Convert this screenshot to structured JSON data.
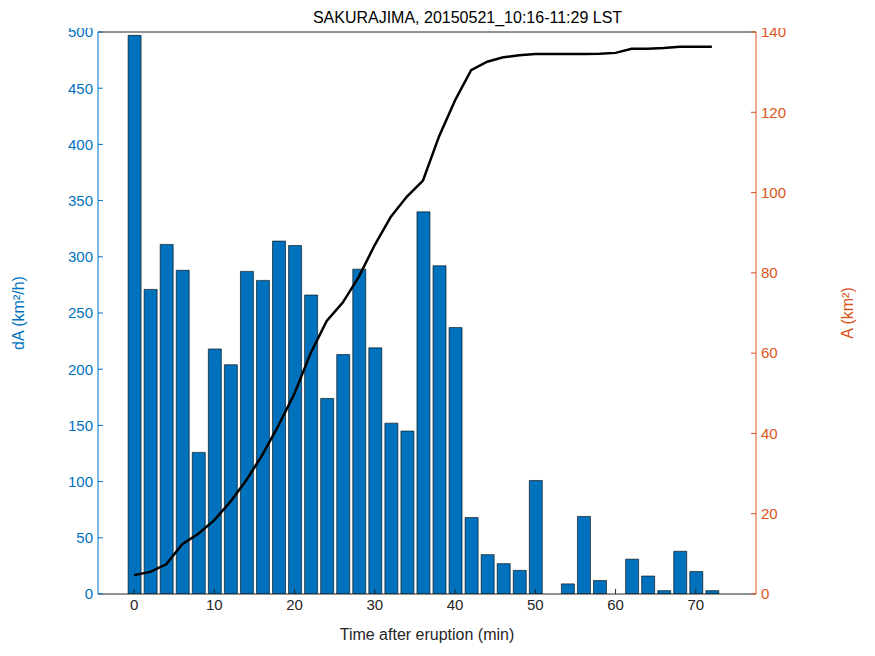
{
  "chart_data": {
    "type": "bar",
    "title": "SAKURAJIMA, 20150521_10:16-11:29 LST",
    "xlabel": "Time after eruption (min)",
    "ylabel": "dA (km²/h)",
    "y2label": "A (km²)",
    "x": [
      0,
      2,
      4,
      6,
      8,
      10,
      12,
      14,
      16,
      18,
      20,
      22,
      24,
      26,
      28,
      30,
      32,
      34,
      36,
      38,
      40,
      42,
      44,
      46,
      48,
      50,
      52,
      54,
      56,
      58,
      60,
      62,
      64,
      66,
      68,
      70,
      72
    ],
    "xlim": [
      -4.5,
      77.5
    ],
    "xticks": [
      0,
      10,
      20,
      30,
      40,
      50,
      60,
      70
    ],
    "ylim": [
      0,
      500
    ],
    "yticks": [
      0,
      50,
      100,
      150,
      200,
      250,
      300,
      350,
      400,
      450,
      500
    ],
    "y2lim": [
      0,
      140
    ],
    "y2ticks": [
      0,
      20,
      40,
      60,
      80,
      100,
      120,
      140
    ],
    "series": [
      {
        "name": "dA",
        "type": "bar",
        "color": "#0072bd",
        "values": [
          497,
          271,
          311,
          288,
          126,
          218,
          204,
          287,
          279,
          314,
          310,
          266,
          174,
          213,
          289,
          219,
          152,
          145,
          340,
          292,
          237,
          68,
          35,
          27,
          21,
          101,
          0,
          9,
          69,
          12,
          0,
          31,
          16,
          3,
          38,
          20,
          3
        ]
      },
      {
        "name": "A",
        "type": "line",
        "axis": "y2",
        "color": "#000000",
        "values": [
          4.7,
          5.5,
          7.4,
          12.4,
          15,
          18.4,
          23,
          28.4,
          34.7,
          42,
          50,
          60,
          68,
          72.6,
          79,
          87,
          94,
          99,
          103,
          114,
          123,
          130.5,
          132.6,
          133.7,
          134.2,
          134.5,
          134.5,
          134.5,
          134.5,
          134.6,
          134.8,
          135.8,
          135.8,
          136,
          136.3,
          136.3,
          136.3
        ]
      }
    ]
  }
}
